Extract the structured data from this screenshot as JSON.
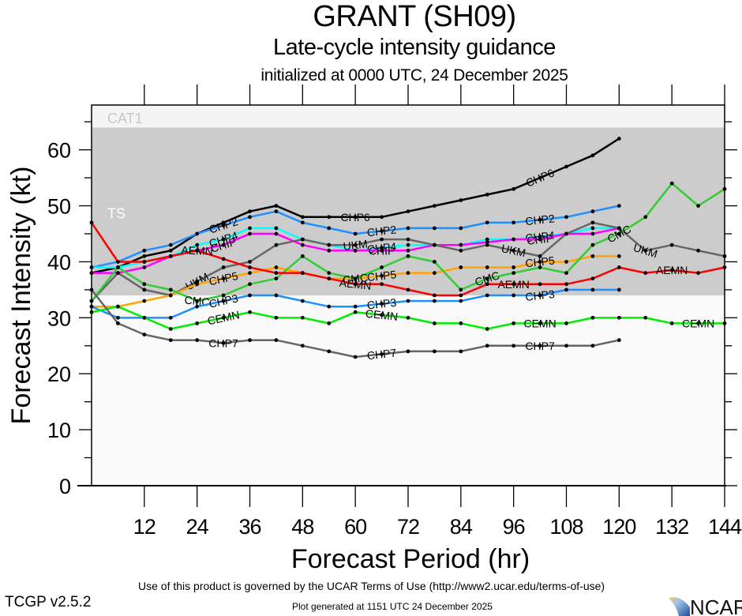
{
  "header": {
    "title": "GRANT (SH09)",
    "subtitle": "Late-cycle intensity guidance",
    "init_line": "initialized at 0000 UTC, 24 December 2025"
  },
  "footer": {
    "terms": "Use of this product is governed by the UCAR Terms of Use (http://www2.ucar.edu/terms-of-use)",
    "version": "TCGP v2.5.2",
    "generated": "Plot generated at 1151 UTC   24 December 2025",
    "logo_text": "NCAR"
  },
  "chart_data": {
    "type": "line",
    "title": "GRANT (SH09)",
    "xlabel": "Forecast Period (hr)",
    "ylabel": "Forecast Intensity (kt)",
    "xlim": [
      0,
      144
    ],
    "ylim": [
      0,
      68
    ],
    "xticks": [
      12,
      24,
      36,
      48,
      60,
      72,
      84,
      96,
      108,
      120,
      132,
      144
    ],
    "yticks": [
      0,
      10,
      20,
      30,
      40,
      50,
      60
    ],
    "grid": false,
    "bands": [
      {
        "label": "TS",
        "from": 34,
        "to": 64,
        "color": "#cccccc",
        "label_color": "#ffffff"
      },
      {
        "label": "CAT1",
        "from": 64,
        "to": 68,
        "color": "#f4f4f4",
        "label_color": "#c8c8c8"
      }
    ],
    "background_color": "#fafafa",
    "x": [
      0,
      6,
      12,
      18,
      24,
      30,
      36,
      42,
      48,
      54,
      60,
      66,
      72,
      78,
      84,
      90,
      96,
      102,
      108,
      114,
      120,
      126,
      132,
      138,
      144
    ],
    "series": [
      {
        "name": "CHP6",
        "color": "#000000",
        "label_at": [
          60,
          102
        ],
        "values": [
          38,
          39,
          41,
          42,
          45,
          47,
          49,
          50,
          48,
          48,
          48,
          48,
          49,
          50,
          51,
          52,
          53,
          55,
          57,
          59,
          62,
          null,
          null,
          null,
          null
        ]
      },
      {
        "name": "CHP2",
        "color": "#1e90ff",
        "label_at": [
          30,
          66,
          102
        ],
        "values": [
          39,
          40,
          42,
          43,
          45,
          46.5,
          48,
          49,
          47,
          46,
          45,
          45.5,
          46,
          46,
          46,
          47,
          47,
          47.5,
          48,
          49,
          50,
          null,
          null,
          null,
          null
        ]
      },
      {
        "name": "CHP4",
        "color": "#00ffff",
        "label_at": [
          30,
          66,
          102
        ],
        "values": [
          39,
          39,
          40,
          41,
          43,
          44,
          46,
          46,
          44,
          43,
          42,
          42.5,
          43,
          43,
          43,
          44,
          44,
          44.5,
          45,
          46,
          46,
          null,
          null,
          null,
          null
        ]
      },
      {
        "name": "CHIP",
        "color": "#ff00ff",
        "label_at": [
          30,
          66,
          102
        ],
        "values": [
          38,
          38,
          39,
          41,
          42,
          43,
          45,
          45,
          43,
          42,
          42,
          42,
          42,
          43,
          43,
          43.5,
          44,
          44,
          45,
          45,
          46,
          null,
          null,
          null,
          null
        ]
      },
      {
        "name": "UKM",
        "color": "#666666",
        "label_at": [
          24,
          60,
          96,
          126
        ],
        "values": [
          33,
          38,
          35,
          34,
          36.5,
          39,
          40,
          43,
          44,
          43,
          43,
          44,
          44,
          43,
          42,
          43,
          42,
          41,
          45,
          47,
          46,
          42,
          43,
          42,
          41
        ]
      },
      {
        "name": "CHP5",
        "color": "#ffa500",
        "label_at": [
          30,
          66,
          102
        ],
        "values": [
          32,
          32,
          33,
          34,
          36,
          37,
          38,
          39,
          38,
          37,
          37,
          37.5,
          38,
          38,
          39,
          39,
          39,
          40,
          40,
          41,
          41,
          null,
          null,
          null,
          null
        ]
      },
      {
        "name": "CMC",
        "color": "#33cc33",
        "label_at": [
          24,
          60,
          90,
          120
        ],
        "values": [
          33,
          39,
          36,
          35,
          33,
          34,
          36,
          37,
          41,
          38,
          37,
          39,
          41,
          40,
          35,
          37,
          38,
          39,
          38,
          43,
          45,
          48,
          54,
          50,
          53
        ]
      },
      {
        "name": "AEMN",
        "color": "#ff0000",
        "label_at": [
          24,
          60,
          96,
          132
        ],
        "values": [
          47,
          40,
          40,
          41,
          42,
          40.5,
          39,
          38,
          38,
          37,
          36,
          36,
          35,
          34,
          34,
          36,
          36,
          36,
          36,
          37,
          39,
          38,
          38.5,
          38,
          39
        ]
      },
      {
        "name": "CHP3",
        "color": "#1e90ff",
        "label_at": [
          30,
          66,
          102
        ],
        "values": [
          32,
          30,
          30,
          30,
          32,
          33,
          34,
          34,
          33,
          32,
          32,
          32.5,
          33,
          33,
          33,
          34,
          34,
          34,
          35,
          35,
          35,
          null,
          null,
          null,
          null
        ]
      },
      {
        "name": "CEMN",
        "color": "#00ee00",
        "label_at": [
          30,
          66,
          102,
          138
        ],
        "values": [
          31,
          32,
          30,
          28,
          29,
          30,
          31,
          30,
          30,
          29,
          31,
          30.5,
          30,
          29,
          29,
          28,
          29,
          29,
          29,
          30,
          30,
          30,
          29,
          29,
          29
        ]
      },
      {
        "name": "CHP7",
        "color": "#666666",
        "label_at": [
          30,
          66,
          102
        ],
        "values": [
          35,
          29,
          27,
          26,
          26,
          25.5,
          26,
          26,
          25,
          24,
          23,
          23.5,
          24,
          24,
          24,
          25,
          25,
          25,
          25,
          25,
          26,
          null,
          null,
          null,
          null
        ]
      }
    ]
  }
}
